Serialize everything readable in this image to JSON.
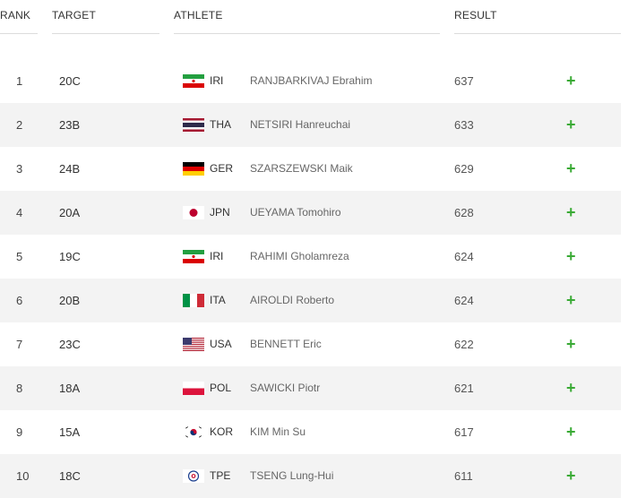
{
  "columns": {
    "rank": "RANK",
    "target": "TARGET",
    "athlete": "ATHLETE",
    "result": "RESULT"
  },
  "rows": [
    {
      "rank": "1",
      "target": "20C",
      "flag": "IRI",
      "noc": "IRI",
      "athlete": "RANJBARKIVAJ Ebrahim",
      "result": "637",
      "expand": "+"
    },
    {
      "rank": "2",
      "target": "23B",
      "flag": "THA",
      "noc": "THA",
      "athlete": "NETSIRI Hanreuchai",
      "result": "633",
      "expand": "+"
    },
    {
      "rank": "3",
      "target": "24B",
      "flag": "GER",
      "noc": "GER",
      "athlete": "SZARSZEWSKI Maik",
      "result": "629",
      "expand": "+"
    },
    {
      "rank": "4",
      "target": "20A",
      "flag": "JPN",
      "noc": "JPN",
      "athlete": "UEYAMA Tomohiro",
      "result": "628",
      "expand": "+"
    },
    {
      "rank": "5",
      "target": "19C",
      "flag": "IRI",
      "noc": "IRI",
      "athlete": "RAHIMI Gholamreza",
      "result": "624",
      "expand": "+"
    },
    {
      "rank": "6",
      "target": "20B",
      "flag": "ITA",
      "noc": "ITA",
      "athlete": "AIROLDI Roberto",
      "result": "624",
      "expand": "+"
    },
    {
      "rank": "7",
      "target": "23C",
      "flag": "USA",
      "noc": "USA",
      "athlete": "BENNETT Eric",
      "result": "622",
      "expand": "+"
    },
    {
      "rank": "8",
      "target": "18A",
      "flag": "POL",
      "noc": "POL",
      "athlete": "SAWICKI Piotr",
      "result": "621",
      "expand": "+"
    },
    {
      "rank": "9",
      "target": "15A",
      "flag": "KOR",
      "noc": "KOR",
      "athlete": "KIM Min Su",
      "result": "617",
      "expand": "+"
    },
    {
      "rank": "10",
      "target": "18C",
      "flag": "TPE",
      "noc": "TPE",
      "athlete": "TSENG Lung-Hui",
      "result": "611",
      "expand": "+"
    }
  ],
  "colors": {
    "accent_plus": "#3aaa35",
    "row_alt": "#f3f3f3",
    "divider": "#dcdcdc"
  }
}
